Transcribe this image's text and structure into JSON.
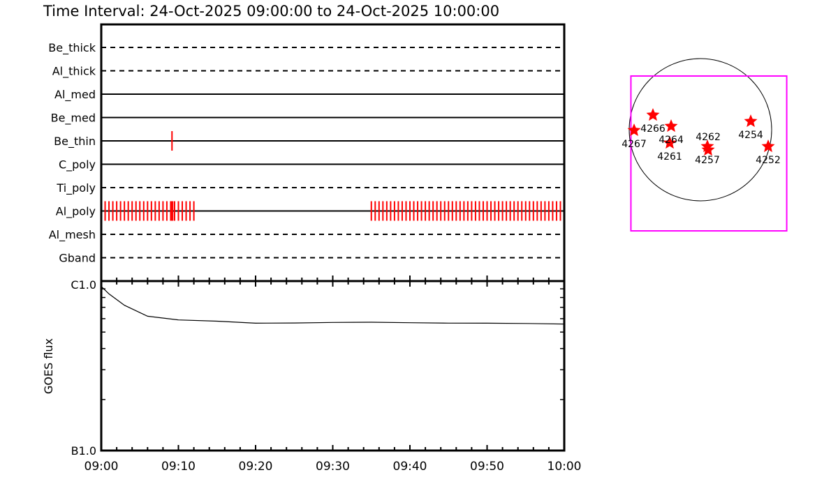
{
  "chart_data": [
    {
      "type": "timeline",
      "title": "Time Interval: 24-Oct-2025 09:00:00 to 24-Oct-2025 10:00:00",
      "xlim": [
        "09:00",
        "10:00"
      ],
      "x_tick_labels": [
        "09:00",
        "09:10",
        "09:20",
        "09:30",
        "09:40",
        "09:50",
        "10:00"
      ],
      "filters": [
        {
          "name": "Be_thick",
          "style": "dashed",
          "times": []
        },
        {
          "name": "Al_thick",
          "style": "dashed",
          "times": []
        },
        {
          "name": "Al_med",
          "style": "solid",
          "times": []
        },
        {
          "name": "Be_med",
          "style": "solid",
          "times": []
        },
        {
          "name": "Be_thin",
          "style": "solid",
          "times": [
            "09:09:10"
          ]
        },
        {
          "name": "C_poly",
          "style": "solid",
          "times": []
        },
        {
          "name": "Ti_poly",
          "style": "dashed",
          "times": []
        },
        {
          "name": "Al_poly",
          "style": "solid",
          "times": [
            "09:00:00",
            "09:00:30",
            "09:01:00",
            "09:01:30",
            "09:02:00",
            "09:02:30",
            "09:03:00",
            "09:03:30",
            "09:04:00",
            "09:04:30",
            "09:05:00",
            "09:05:30",
            "09:06:00",
            "09:06:30",
            "09:07:00",
            "09:07:30",
            "09:08:00",
            "09:08:30",
            "09:09:00",
            "09:09:05",
            "09:09:15",
            "09:09:30",
            "09:10:00",
            "09:10:30",
            "09:11:00",
            "09:11:30",
            "09:12:00",
            "09:35:00",
            "09:35:30",
            "09:36:00",
            "09:36:30",
            "09:37:00",
            "09:37:30",
            "09:38:00",
            "09:38:30",
            "09:39:00",
            "09:39:30",
            "09:40:00",
            "09:40:30",
            "09:41:00",
            "09:41:30",
            "09:42:00",
            "09:42:30",
            "09:43:00",
            "09:43:30",
            "09:44:00",
            "09:44:30",
            "09:45:00",
            "09:45:30",
            "09:46:00",
            "09:46:30",
            "09:47:00",
            "09:47:30",
            "09:48:00",
            "09:48:30",
            "09:49:00",
            "09:49:30",
            "09:50:00",
            "09:50:30",
            "09:51:00",
            "09:51:30",
            "09:52:00",
            "09:52:30",
            "09:53:00",
            "09:53:30",
            "09:54:00",
            "09:54:30",
            "09:55:00",
            "09:55:30",
            "09:56:00",
            "09:56:30",
            "09:57:00",
            "09:57:30",
            "09:58:00",
            "09:58:30",
            "09:59:00",
            "09:59:30"
          ]
        },
        {
          "name": "Al_mesh",
          "style": "dashed",
          "times": []
        },
        {
          "name": "Gband",
          "style": "dashed",
          "times": []
        }
      ],
      "marker_color": "#ff0000"
    },
    {
      "type": "line",
      "ylabel": "GOES flux",
      "yscale": "log",
      "ylim": [
        1e-07,
        1e-06
      ],
      "y_tick_labels": [
        "B1.0",
        "C1.0"
      ],
      "x": [
        "09:00",
        "09:01",
        "09:03",
        "09:06",
        "09:10",
        "09:15",
        "09:20",
        "09:25",
        "09:30",
        "09:35",
        "09:40",
        "09:45",
        "09:50",
        "09:55",
        "10:00"
      ],
      "y": [
        9.3e-07,
        8.4e-07,
        7.2e-07,
        6.2e-07,
        5.9e-07,
        5.8e-07,
        5.64e-07,
        5.66e-07,
        5.7e-07,
        5.72e-07,
        5.68e-07,
        5.65e-07,
        5.64e-07,
        5.62e-07,
        5.58e-07
      ]
    },
    {
      "type": "scatter",
      "units": "arcsec",
      "limb_radius": 960,
      "fov": {
        "xc": 113,
        "yc": -320,
        "width": 2100,
        "height": 2090,
        "color": "#ff00ff"
      },
      "regions": [
        {
          "label": "4266",
          "x": -640,
          "y": 198
        },
        {
          "label": "4264",
          "x": -395,
          "y": 47
        },
        {
          "label": "4267",
          "x": -894,
          "y": -9
        },
        {
          "label": "4261",
          "x": -414,
          "y": -179
        },
        {
          "label": "4257",
          "x": 94,
          "y": -226
        },
        {
          "label": "4262",
          "x": 104,
          "y": -273
        },
        {
          "label": "4254",
          "x": 678,
          "y": 113
        },
        {
          "label": "4252",
          "x": 913,
          "y": -226
        }
      ],
      "marker_color": "#ff0000"
    }
  ]
}
